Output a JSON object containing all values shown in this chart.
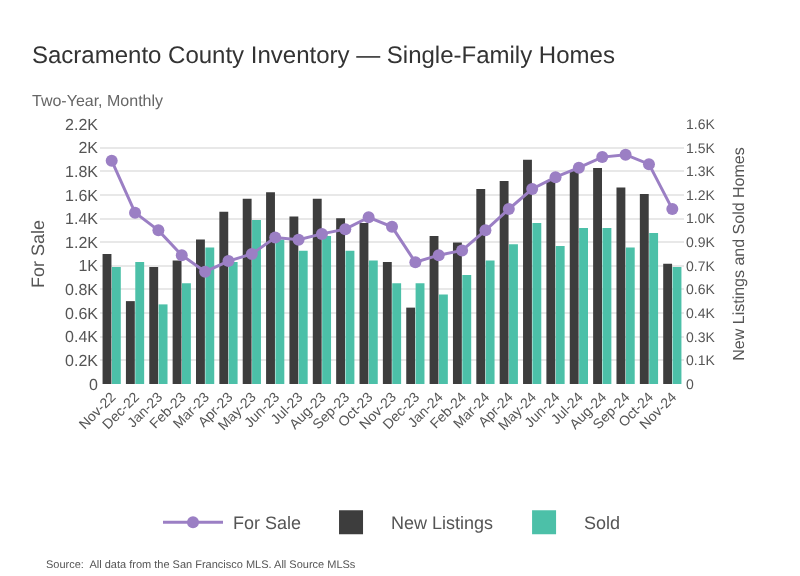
{
  "chart_data": {
    "type": "bar",
    "title": "Sacramento County Inventory — Single-Family Homes",
    "subtitle": "Two-Year, Monthly",
    "ylabel": "For Sale",
    "y2label": "New Listings and Sold Homes",
    "categories": [
      "Nov-22",
      "Dec-22",
      "Jan-23",
      "Feb-23",
      "Mar-23",
      "Apr-23",
      "May-23",
      "Jun-23",
      "Jul-23",
      "Aug-23",
      "Sep-23",
      "Oct-23",
      "Nov-23",
      "Dec-23",
      "Jan-24",
      "Feb-24",
      "Mar-24",
      "Apr-24",
      "May-24",
      "Jun-24",
      "Jul-24",
      "Aug-24",
      "Sep-24",
      "Oct-24",
      "Nov-24"
    ],
    "series": [
      {
        "name": "For Sale",
        "type": "line",
        "color": "#9b7fc4",
        "marker": "circle",
        "values": [
          1890,
          1450,
          1300,
          1090,
          950,
          1040,
          1100,
          1240,
          1220,
          1270,
          1310,
          1410,
          1330,
          1030,
          1090,
          1130,
          1300,
          1480,
          1650,
          1750,
          1830,
          1920,
          1940,
          1860,
          1480
        ]
      },
      {
        "name": "New Listings",
        "axis": "y2",
        "color": "#3d3d3d",
        "values": [
          800,
          510,
          720,
          760,
          890,
          1060,
          1140,
          1180,
          1030,
          1140,
          1020,
          990,
          750,
          470,
          910,
          870,
          1200,
          1250,
          1380,
          1250,
          1310,
          1330,
          1210,
          1170,
          740
        ]
      },
      {
        "name": "Sold",
        "axis": "y2",
        "color": "#4cc0a8",
        "values": [
          720,
          750,
          490,
          620,
          840,
          750,
          1010,
          890,
          820,
          910,
          820,
          760,
          620,
          620,
          550,
          670,
          760,
          860,
          990,
          850,
          960,
          960,
          840,
          930,
          720
        ]
      }
    ],
    "ylim": [
      0,
      2200
    ],
    "yticks": [
      0,
      {
        "value": 200,
        "label": "0.2K"
      },
      {
        "value": 400,
        "label": "0.4K"
      },
      {
        "value": 600,
        "label": "0.6K"
      },
      {
        "value": 800,
        "label": "0.8K"
      },
      {
        "value": 1000,
        "label": "1K"
      },
      {
        "value": 1200,
        "label": "1.2K"
      },
      {
        "value": 1400,
        "label": "1.4K"
      },
      {
        "value": 1600,
        "label": "1.6K"
      },
      {
        "value": 1800,
        "label": "1.8K"
      },
      {
        "value": 2000,
        "label": "2K"
      },
      {
        "value": 2200,
        "label": "2.2K"
      }
    ],
    "y2lim": [
      0,
      1600
    ],
    "y2ticks": [
      0,
      {
        "value": 145.45,
        "label": "0.1K"
      },
      {
        "value": 290.91,
        "label": "0.3K"
      },
      {
        "value": 436.36,
        "label": "0.4K"
      },
      {
        "value": 581.82,
        "label": "0.6K"
      },
      {
        "value": 727.27,
        "label": "0.7K"
      },
      {
        "value": 872.73,
        "label": "0.9K"
      },
      {
        "value": 1018.18,
        "label": "1.0K"
      },
      {
        "value": 1163.64,
        "label": "1.2K"
      },
      {
        "value": 1309.09,
        "label": "1.3K"
      },
      {
        "value": 1454.55,
        "label": "1.5K"
      },
      {
        "value": 1600,
        "label": "1.6K"
      }
    ],
    "grid": "y",
    "legend": "bottom",
    "annotations": [
      "Source:  All data from the San Francisco MLS. All Source MLSs"
    ]
  }
}
